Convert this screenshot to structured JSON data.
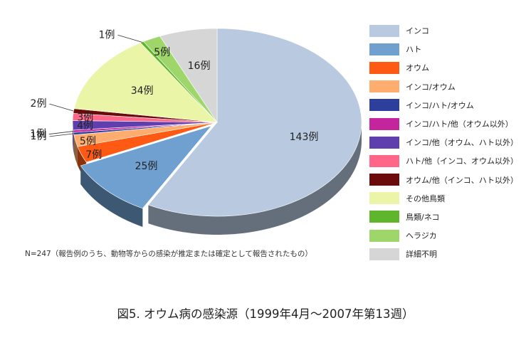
{
  "chart_data": {
    "type": "pie",
    "title": "図5. オウム病の感染源（1999年4月～2007年第13週）",
    "note": "N=247（報告例のうち、動物等からの感染が推定または確定として報告されたもの）",
    "legend_position": "right",
    "slices": [
      {
        "label": "インコ",
        "value": 143,
        "data_label": "143例",
        "color": "#b8c9e0"
      },
      {
        "label": "ハト",
        "value": 25,
        "data_label": "25例",
        "color": "#6fa0cf"
      },
      {
        "label": "オウム",
        "value": 7,
        "data_label": "7例",
        "color": "#ff5a14"
      },
      {
        "label": "インコ/オウム",
        "value": 5,
        "data_label": "5例",
        "color": "#ffad6e"
      },
      {
        "label": "インコ/ハト/オウム",
        "value": 1,
        "data_label": "1例",
        "color": "#2c3f9c"
      },
      {
        "label": "インコ/ハト/他（オウム以外）",
        "value": 1,
        "data_label": "1例",
        "color": "#c4249c"
      },
      {
        "label": "インコ/他（オウム、ハト以外）",
        "value": 4,
        "data_label": "4例",
        "color": "#5f3fae"
      },
      {
        "label": "ハト/他（インコ、オウム以外）",
        "value": 3,
        "data_label": "3例",
        "color": "#ff6688"
      },
      {
        "label": "オウム/他（インコ、ハト以外）",
        "value": 2,
        "data_label": "2例",
        "color": "#6b0b0b"
      },
      {
        "label": "その他鳥類",
        "value": 34,
        "data_label": "34例",
        "color": "#ebf5a8"
      },
      {
        "label": "鳥類/ネコ",
        "value": 1,
        "data_label": "1例",
        "color": "#5fb52b"
      },
      {
        "label": "ヘラジカ",
        "value": 5,
        "data_label": "5例",
        "color": "#9ed66a"
      },
      {
        "label": "詳細不明",
        "value": 16,
        "data_label": "16例",
        "color": "#d6d6d6"
      }
    ]
  }
}
